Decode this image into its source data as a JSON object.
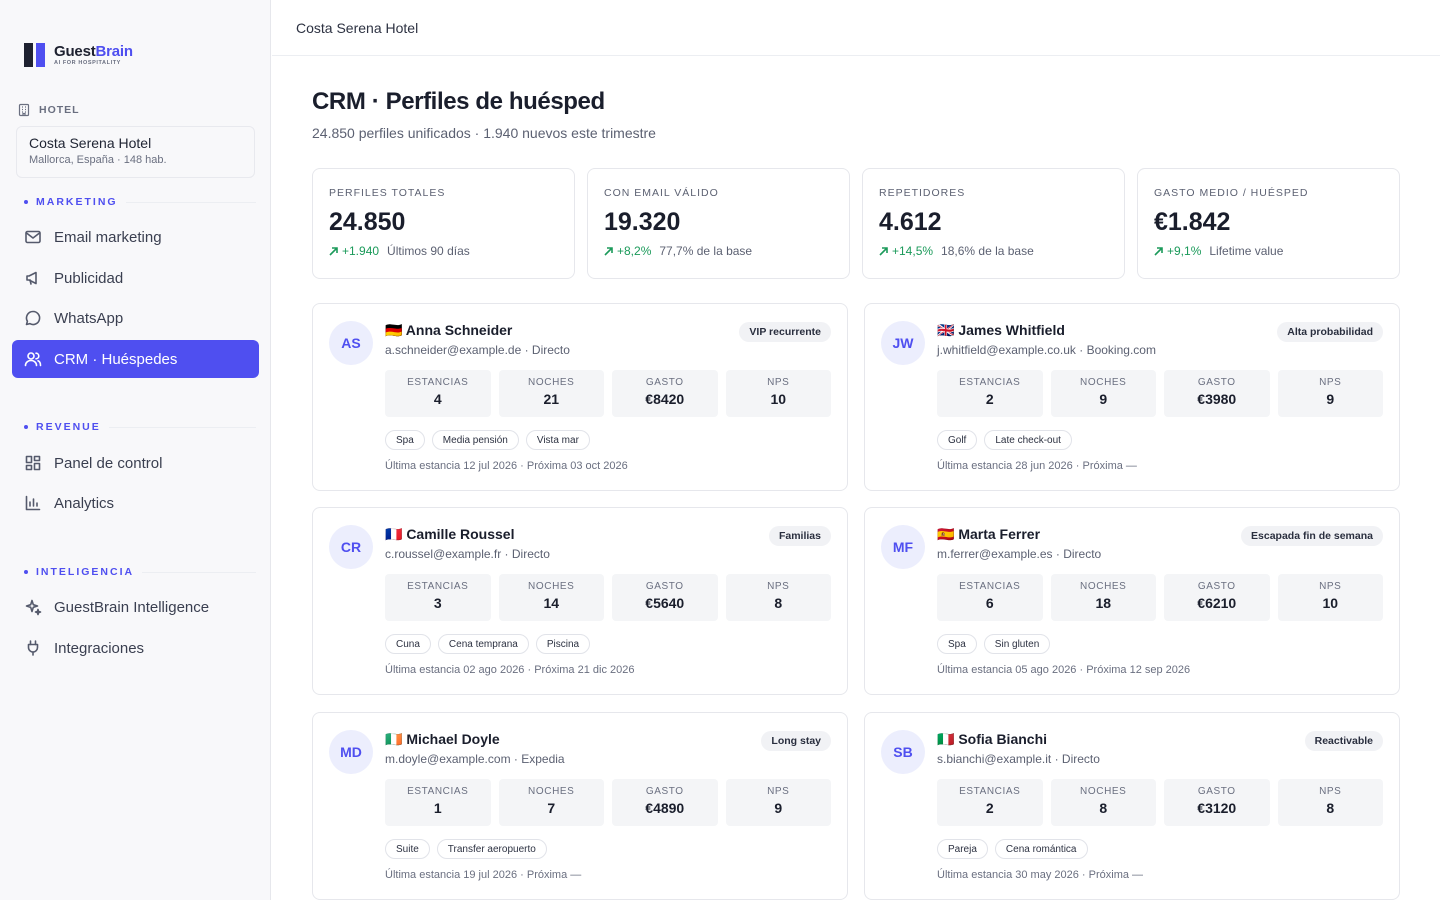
{
  "brand": {
    "name_a": "Guest",
    "name_b": "Brain",
    "tagline": "AI FOR HOSPITALITY"
  },
  "sidebar": {
    "hotel_label": "HOTEL",
    "hotel_name": "Costa Serena Hotel",
    "hotel_sub": "Mallorca, España · 148 hab.",
    "sections": [
      {
        "label": "MARKETING",
        "items": [
          {
            "label": "Email marketing",
            "icon": "mail-icon"
          },
          {
            "label": "Publicidad",
            "icon": "megaphone-icon"
          },
          {
            "label": "WhatsApp",
            "icon": "chat-bubble-icon"
          },
          {
            "label": "CRM · Huéspedes",
            "icon": "users-icon",
            "active": true
          }
        ]
      },
      {
        "label": "REVENUE",
        "items": [
          {
            "label": "Panel de control",
            "icon": "dashboard-icon"
          },
          {
            "label": "Analytics",
            "icon": "bar-chart-icon"
          }
        ]
      },
      {
        "label": "INTELIGENCIA",
        "items": [
          {
            "label": "GuestBrain Intelligence",
            "icon": "sparkles-icon"
          },
          {
            "label": "Integraciones",
            "icon": "plug-icon"
          }
        ]
      }
    ]
  },
  "topbar": {
    "title": "Costa Serena Hotel"
  },
  "page": {
    "title": "CRM · Perfiles de huésped",
    "subtitle": "24.850 perfiles unificados · 1.940 nuevos este trimestre"
  },
  "stats": [
    {
      "label": "PERFILES TOTALES",
      "value": "24.850",
      "delta": "+1.940",
      "note": "Últimos 90 días"
    },
    {
      "label": "CON EMAIL VÁLIDO",
      "value": "19.320",
      "delta": "+8,2%",
      "note": "77,7% de la base"
    },
    {
      "label": "REPETIDORES",
      "value": "4.612",
      "delta": "+14,5%",
      "note": "18,6% de la base"
    },
    {
      "label": "GASTO MEDIO / HUÉSPED",
      "value": "€1.842",
      "delta": "+9,1%",
      "note": "Lifetime value"
    }
  ],
  "metric_labels": {
    "stays": "ESTANCIAS",
    "nights": "NOCHES",
    "spend": "GASTO",
    "nps": "NPS"
  },
  "guests": [
    {
      "initials": "AS",
      "name": "🇩🇪 Anna Schneider",
      "email": "a.schneider@example.de · Directo",
      "badge": "VIP recurrente",
      "stays": "4",
      "nights": "21",
      "spend": "€8420",
      "nps": "10",
      "tags": [
        "Spa",
        "Media pensión",
        "Vista mar"
      ],
      "footer": "Última estancia 12 jul 2026 · Próxima 03 oct 2026"
    },
    {
      "initials": "JW",
      "name": "🇬🇧 James Whitfield",
      "email": "j.whitfield@example.co.uk · Booking.com",
      "badge": "Alta probabilidad",
      "stays": "2",
      "nights": "9",
      "spend": "€3980",
      "nps": "9",
      "tags": [
        "Golf",
        "Late check-out"
      ],
      "footer": "Última estancia 28 jun 2026 · Próxima —"
    },
    {
      "initials": "CR",
      "name": "🇫🇷 Camille Roussel",
      "email": "c.roussel@example.fr · Directo",
      "badge": "Familias",
      "stays": "3",
      "nights": "14",
      "spend": "€5640",
      "nps": "8",
      "tags": [
        "Cuna",
        "Cena temprana",
        "Piscina"
      ],
      "footer": "Última estancia 02 ago 2026 · Próxima 21 dic 2026"
    },
    {
      "initials": "MF",
      "name": "🇪🇸 Marta Ferrer",
      "email": "m.ferrer@example.es · Directo",
      "badge": "Escapada fin de semana",
      "stays": "6",
      "nights": "18",
      "spend": "€6210",
      "nps": "10",
      "tags": [
        "Spa",
        "Sin gluten"
      ],
      "footer": "Última estancia 05 ago 2026 · Próxima 12 sep 2026"
    },
    {
      "initials": "MD",
      "name": "🇮🇪 Michael Doyle",
      "email": "m.doyle@example.com · Expedia",
      "badge": "Long stay",
      "stays": "1",
      "nights": "7",
      "spend": "€4890",
      "nps": "9",
      "tags": [
        "Suite",
        "Transfer aeropuerto"
      ],
      "footer": "Última estancia 19 jul 2026 · Próxima —"
    },
    {
      "initials": "SB",
      "name": "🇮🇹 Sofia Bianchi",
      "email": "s.bianchi@example.it · Directo",
      "badge": "Reactivable",
      "stays": "2",
      "nights": "8",
      "spend": "€3120",
      "nps": "8",
      "tags": [
        "Pareja",
        "Cena romántica"
      ],
      "footer": "Última estancia 30 may 2026 · Próxima —"
    }
  ]
}
